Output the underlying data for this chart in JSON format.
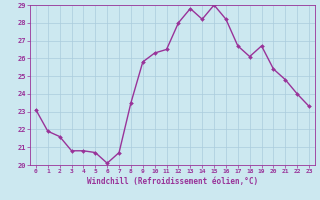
{
  "x": [
    0,
    1,
    2,
    3,
    4,
    5,
    6,
    7,
    8,
    9,
    10,
    11,
    12,
    13,
    14,
    15,
    16,
    17,
    18,
    19,
    20,
    21,
    22,
    23
  ],
  "y": [
    23.1,
    21.9,
    21.6,
    20.8,
    20.8,
    20.7,
    20.1,
    20.7,
    23.5,
    25.8,
    26.3,
    26.5,
    28.0,
    28.8,
    28.2,
    29.0,
    28.2,
    26.7,
    26.1,
    26.7,
    25.4,
    24.8,
    24.0,
    23.3
  ],
  "line_color": "#993399",
  "marker": "D",
  "marker_size": 2.0,
  "line_width": 1.0,
  "xlabel": "Windchill (Refroidissement éolien,°C)",
  "xlim": [
    -0.5,
    23.5
  ],
  "ylim": [
    20,
    29
  ],
  "yticks": [
    20,
    21,
    22,
    23,
    24,
    25,
    26,
    27,
    28,
    29
  ],
  "xticks": [
    0,
    1,
    2,
    3,
    4,
    5,
    6,
    7,
    8,
    9,
    10,
    11,
    12,
    13,
    14,
    15,
    16,
    17,
    18,
    19,
    20,
    21,
    22,
    23
  ],
  "bg_color": "#cce8f0",
  "grid_color": "#aaccdd",
  "line_border_color": "#993399",
  "tick_color": "#993399",
  "label_color": "#993399"
}
